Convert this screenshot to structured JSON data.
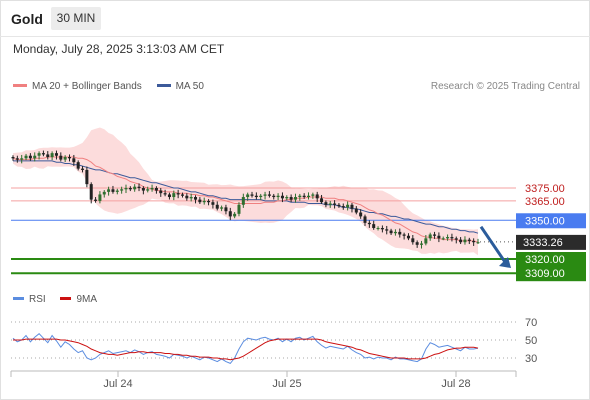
{
  "header": {
    "title": "Gold",
    "timeframe": "30 MIN",
    "timestamp": "Monday, July 28, 2025 3:13:03 AM CET"
  },
  "legend": {
    "ma20_label": "MA 20 + Bollinger Bands",
    "ma50_label": "MA 50",
    "credit": "Research © 2025 Trading Central",
    "rsi_label": "RSI",
    "ma9_label": "9MA"
  },
  "colors": {
    "ma20": "#f08080",
    "ma50": "#3c5a9a",
    "band_fill": "#fbd0d0",
    "resistance": "#f4a0a0",
    "pivot": "#4a7cf0",
    "support": "#2a8a12",
    "candle_up": "#2f6e2f",
    "candle_down": "#222222",
    "rsi": "#5b8de0",
    "rsi_ma": "#cc1111",
    "arrow": "#2b5c9b"
  },
  "chart_data": [
    {
      "type": "candlestick",
      "name": "price",
      "x_ticks": [
        "Jul 24",
        "Jul 25",
        "Jul 28"
      ],
      "ylim": [
        3300,
        3420
      ],
      "levels": [
        {
          "value": 3375.0,
          "label": "3375.00",
          "kind": "resistance"
        },
        {
          "value": 3365.0,
          "label": "3365.00",
          "kind": "resistance"
        },
        {
          "value": 3350.0,
          "label": "3350.00",
          "kind": "pivot"
        },
        {
          "value": 3320.0,
          "label": "3320.00",
          "kind": "support"
        },
        {
          "value": 3309.0,
          "label": "3309.00",
          "kind": "support"
        }
      ],
      "last_price": {
        "value": 3333.26,
        "label": "3333.26"
      },
      "close": [
        3398,
        3397,
        3398,
        3400,
        3398,
        3400,
        3402,
        3401,
        3399,
        3402,
        3400,
        3397,
        3399,
        3398,
        3395,
        3390,
        3389,
        3378,
        3366,
        3365,
        3370,
        3372,
        3374,
        3372,
        3373,
        3374,
        3375,
        3374,
        3376,
        3375,
        3373,
        3374,
        3375,
        3373,
        3371,
        3370,
        3368,
        3371,
        3370,
        3369,
        3367,
        3368,
        3366,
        3364,
        3365,
        3364,
        3362,
        3359,
        3360,
        3357,
        3353,
        3355,
        3362,
        3368,
        3370,
        3369,
        3368,
        3369,
        3370,
        3369,
        3368,
        3369,
        3367,
        3368,
        3366,
        3368,
        3369,
        3368,
        3369,
        3370,
        3367,
        3364,
        3362,
        3363,
        3362,
        3361,
        3360,
        3362,
        3359,
        3356,
        3353,
        3348,
        3347,
        3344,
        3344,
        3343,
        3342,
        3340,
        3341,
        3339,
        3338,
        3336,
        3333,
        3331,
        3332,
        3336,
        3339,
        3338,
        3336,
        3336,
        3337,
        3336,
        3335,
        3333,
        3335,
        3334,
        3333,
        3333
      ],
      "ma20": [
        3398,
        3397,
        3397,
        3397,
        3397,
        3398,
        3398,
        3398,
        3399,
        3399,
        3399,
        3399,
        3399,
        3399,
        3399,
        3398,
        3398,
        3397,
        3395,
        3392,
        3391,
        3389,
        3387,
        3386,
        3384,
        3383,
        3382,
        3380,
        3379,
        3378,
        3376,
        3375,
        3374,
        3373,
        3373,
        3372,
        3372,
        3372,
        3371,
        3371,
        3371,
        3370,
        3370,
        3369,
        3369,
        3368,
        3368,
        3367,
        3366,
        3365,
        3364,
        3363,
        3363,
        3363,
        3363,
        3363,
        3363,
        3363,
        3364,
        3364,
        3364,
        3365,
        3365,
        3366,
        3366,
        3367,
        3367,
        3367,
        3368,
        3368,
        3368,
        3368,
        3367,
        3367,
        3367,
        3366,
        3366,
        3365,
        3364,
        3363,
        3362,
        3360,
        3358,
        3357,
        3355,
        3354,
        3352,
        3350,
        3348,
        3347,
        3345,
        3343,
        3341,
        3340,
        3338,
        3337,
        3337,
        3336,
        3336,
        3335,
        3335,
        3335,
        3335,
        3334,
        3334,
        3334,
        3334,
        3333
      ],
      "ma50": [
        3396,
        3396,
        3396,
        3396,
        3396,
        3396,
        3396,
        3396,
        3396,
        3396,
        3395,
        3395,
        3394,
        3394,
        3393,
        3393,
        3392,
        3391,
        3390,
        3389,
        3389,
        3388,
        3387,
        3386,
        3386,
        3385,
        3384,
        3383,
        3383,
        3382,
        3381,
        3380,
        3379,
        3379,
        3378,
        3377,
        3376,
        3375,
        3375,
        3374,
        3373,
        3372,
        3372,
        3371,
        3370,
        3369,
        3369,
        3368,
        3367,
        3367,
        3366,
        3366,
        3366,
        3366,
        3366,
        3366,
        3366,
        3366,
        3365,
        3365,
        3365,
        3365,
        3365,
        3365,
        3364,
        3364,
        3364,
        3364,
        3363,
        3363,
        3363,
        3363,
        3362,
        3362,
        3362,
        3361,
        3360,
        3360,
        3359,
        3359,
        3358,
        3357,
        3356,
        3356,
        3355,
        3355,
        3354,
        3353,
        3353,
        3352,
        3351,
        3351,
        3350,
        3349,
        3348,
        3347,
        3347,
        3346,
        3345,
        3345,
        3344,
        3343,
        3343,
        3342,
        3342,
        3341,
        3341,
        3340
      ]
    },
    {
      "type": "line",
      "name": "rsi",
      "ylim": [
        15,
        80
      ],
      "y_ticks": [
        70,
        50,
        30
      ],
      "rsi": [
        52,
        48,
        50,
        55,
        48,
        53,
        57,
        52,
        47,
        55,
        49,
        42,
        48,
        45,
        40,
        36,
        38,
        30,
        28,
        30,
        34,
        36,
        38,
        35,
        36,
        37,
        38,
        36,
        39,
        37,
        34,
        36,
        37,
        34,
        33,
        32,
        30,
        34,
        33,
        32,
        30,
        32,
        30,
        28,
        31,
        30,
        28,
        26,
        29,
        26,
        24,
        30,
        40,
        48,
        52,
        51,
        50,
        52,
        53,
        51,
        50,
        52,
        48,
        51,
        48,
        52,
        53,
        50,
        52,
        54,
        48,
        44,
        41,
        43,
        42,
        41,
        40,
        43,
        39,
        36,
        34,
        30,
        31,
        29,
        31,
        30,
        30,
        28,
        31,
        29,
        29,
        28,
        27,
        26,
        29,
        40,
        47,
        45,
        42,
        43,
        44,
        42,
        40,
        38,
        42,
        40,
        40,
        41
      ],
      "ma9": [
        50,
        50,
        50,
        51,
        51,
        51,
        51,
        51,
        51,
        51,
        51,
        50,
        50,
        49,
        48,
        47,
        45,
        43,
        40,
        38,
        36,
        35,
        34,
        34,
        33,
        34,
        35,
        36,
        36,
        37,
        37,
        36,
        36,
        36,
        36,
        35,
        35,
        34,
        34,
        33,
        33,
        32,
        32,
        31,
        31,
        31,
        30,
        30,
        29,
        29,
        28,
        29,
        30,
        32,
        35,
        38,
        41,
        44,
        47,
        49,
        50,
        51,
        51,
        51,
        51,
        51,
        51,
        51,
        51,
        51,
        51,
        50,
        48,
        47,
        46,
        45,
        44,
        43,
        42,
        40,
        39,
        37,
        35,
        34,
        33,
        32,
        31,
        30,
        30,
        30,
        30,
        29,
        29,
        29,
        29,
        30,
        32,
        34,
        35,
        37,
        39,
        40,
        41,
        41,
        42,
        42,
        42,
        41
      ]
    }
  ],
  "rsi_tick_labels": [
    "70",
    "50",
    "30"
  ]
}
